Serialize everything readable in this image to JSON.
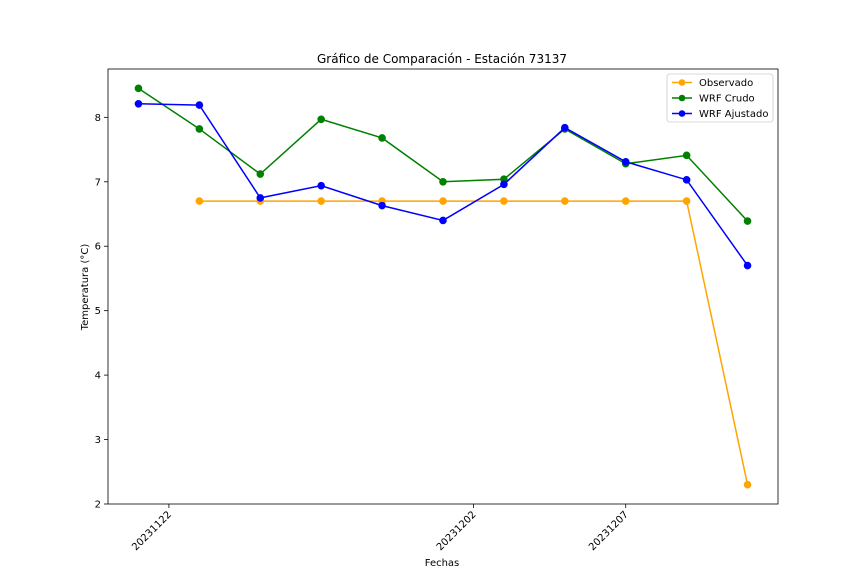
{
  "chart_data": {
    "type": "line",
    "title": "Gráfico de Comparación - Estación 73137",
    "xlabel": "Fechas",
    "ylabel": "Temperatura (°C)",
    "x": [
      "2023-11-21",
      "2023-11-23",
      "2023-11-25",
      "2023-11-27",
      "2023-11-29",
      "2023-12-01",
      "2023-12-03",
      "2023-12-05",
      "2023-12-07",
      "2023-12-09",
      "2023-12-11"
    ],
    "xlim": [
      "2023-11-20",
      "2023-12-12"
    ],
    "ylim": [
      2,
      8.75
    ],
    "yticks": [
      2,
      3,
      4,
      5,
      6,
      7,
      8
    ],
    "xticks": [
      "2023-11-22",
      "2023-12-02",
      "2023-12-07"
    ],
    "xtick_labels": [
      "20231122",
      "20231202",
      "20231207"
    ],
    "grid": false,
    "legend_position": "top-right",
    "series": [
      {
        "name": "Observado",
        "color": "#ffa500",
        "values": [
          null,
          6.7,
          6.7,
          6.7,
          6.7,
          6.7,
          6.7,
          6.7,
          6.7,
          6.7,
          2.3
        ]
      },
      {
        "name": "WRF Crudo",
        "color": "#008000",
        "values": [
          8.45,
          7.82,
          7.12,
          7.97,
          7.68,
          7.0,
          7.04,
          7.82,
          7.28,
          7.41,
          6.39
        ]
      },
      {
        "name": "WRF Ajustado",
        "color": "#0000ff",
        "values": [
          8.21,
          8.19,
          6.75,
          6.94,
          6.63,
          6.4,
          6.96,
          7.84,
          7.31,
          7.03,
          5.7
        ]
      }
    ]
  }
}
